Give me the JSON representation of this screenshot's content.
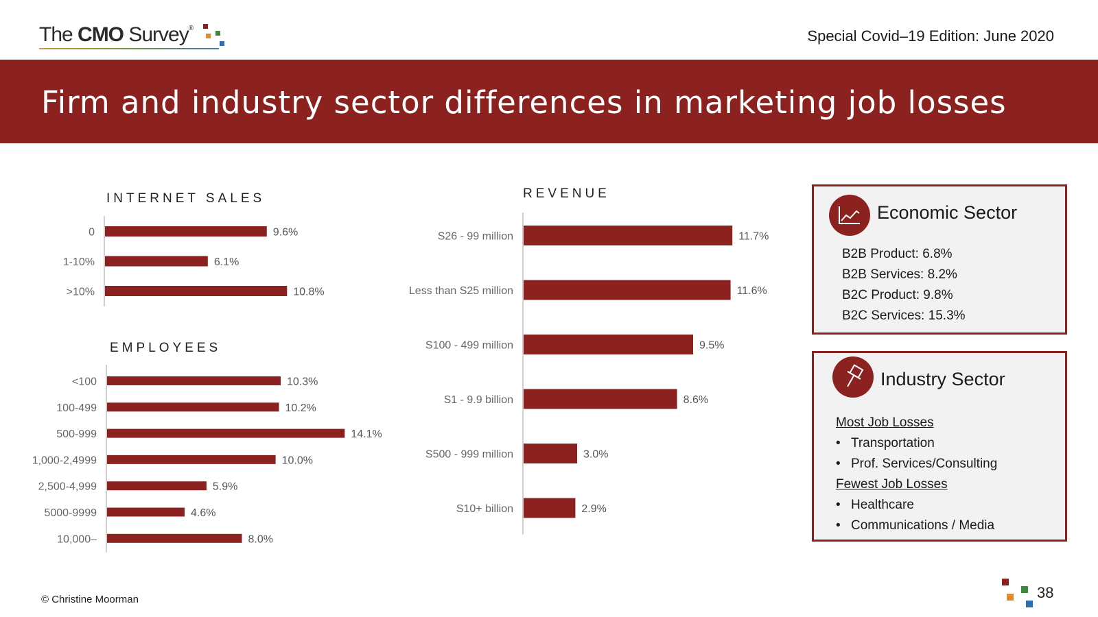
{
  "header": {
    "logo_prefix": "The ",
    "logo_bold": "CMO",
    "logo_suffix": " Survey",
    "logo_reg": "®",
    "edition": "Special Covid–19 Edition: June 2020",
    "title": "Firm and industry sector differences in marketing job losses"
  },
  "colors": {
    "brand": "#8b2220",
    "bar": "#8b2220",
    "logo_red": "#8b2220",
    "logo_orange": "#e08a2a",
    "logo_green": "#3a8a3a",
    "logo_blue": "#2e6db4"
  },
  "chart_data": [
    {
      "type": "bar",
      "orientation": "horizontal",
      "title": "INTERNET SALES",
      "categories": [
        "0",
        "1-10%",
        ">10%"
      ],
      "values": [
        9.6,
        6.1,
        10.8
      ],
      "value_labels": [
        "9.6%",
        "6.1%",
        "10.8%"
      ],
      "xlim": [
        0,
        16
      ]
    },
    {
      "type": "bar",
      "orientation": "horizontal",
      "title": "EMPLOYEES",
      "categories": [
        "<100",
        "100-499",
        "500-999",
        "1,000-2,4999",
        "2,500-4,999",
        "5000-9999",
        "10,000–"
      ],
      "values": [
        10.3,
        10.2,
        14.1,
        10.0,
        5.9,
        4.6,
        8.0
      ],
      "value_labels": [
        "10.3%",
        "10.2%",
        "14.1%",
        "10.0%",
        "5.9%",
        "4.6%",
        "8.0%"
      ],
      "xlim": [
        0,
        16
      ]
    },
    {
      "type": "bar",
      "orientation": "horizontal",
      "title": "REVENUE",
      "categories": [
        "S26 - 99 million",
        "Less than S25 million",
        "S100 - 499 million",
        "S1 - 9.9 billion",
        "S500 - 999 million",
        "S10+ billion"
      ],
      "values": [
        11.7,
        11.6,
        9.5,
        8.6,
        3.0,
        2.9
      ],
      "value_labels": [
        "11.7%",
        "11.6%",
        "9.5%",
        "8.6%",
        "3.0%",
        "2.9%"
      ],
      "xlim": [
        0,
        14
      ]
    }
  ],
  "economic_box": {
    "title": "Economic Sector",
    "icon": "line-chart-icon",
    "lines": [
      "B2B Product: 6.8%",
      "B2B Services: 8.2%",
      "B2C Product: 9.8%",
      "B2C Services: 15.3%"
    ]
  },
  "industry_box": {
    "title": "Industry Sector",
    "icon": "pushpin-icon",
    "most_heading": "Most Job Losses",
    "most_items": [
      "Transportation",
      "Prof. Services/Consulting"
    ],
    "fewest_heading": "Fewest Job Losses",
    "fewest_items": [
      "Healthcare",
      "Communications / Media"
    ],
    "bullet": "•"
  },
  "footer": {
    "copyright": "© Christine Moorman",
    "page_number": "38"
  }
}
